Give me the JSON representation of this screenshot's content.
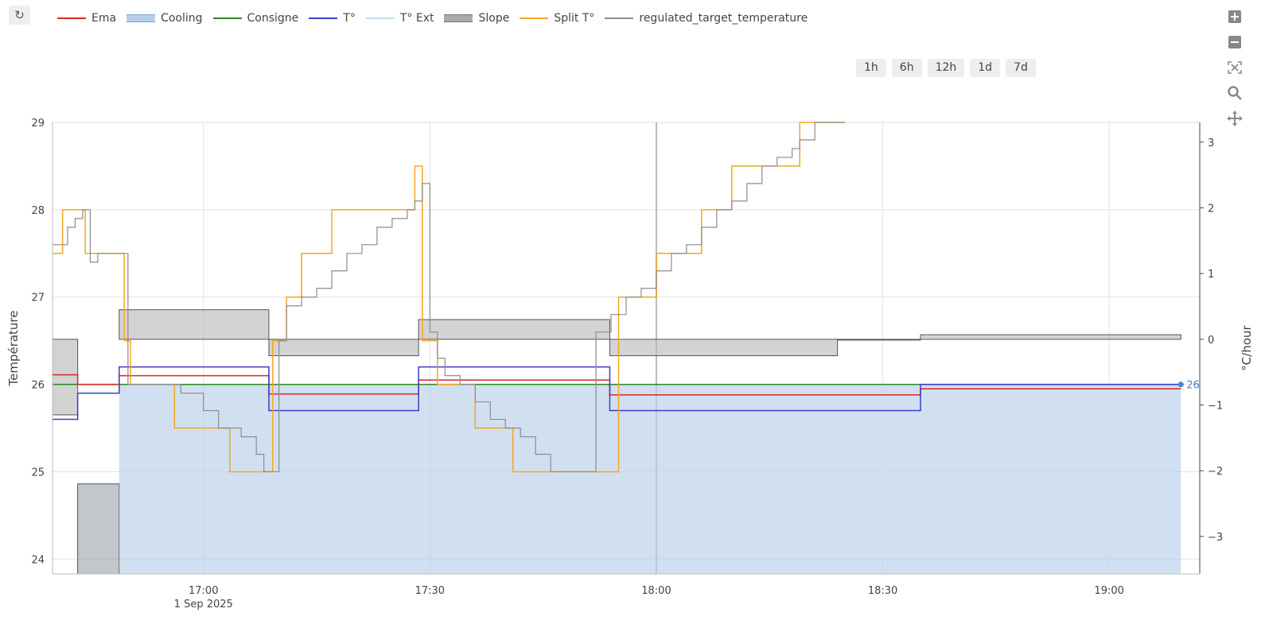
{
  "toolbar": {
    "refresh_icon": "↻"
  },
  "legend": [
    {
      "name": "Ema",
      "color": "#d62728",
      "style": "line"
    },
    {
      "name": "Cooling",
      "color": "#b9cfe8",
      "style": "band"
    },
    {
      "name": "Consigne",
      "color": "#2a8a1f",
      "style": "line"
    },
    {
      "name": "T°",
      "color": "#3b3bcc",
      "style": "line"
    },
    {
      "name": "T° Ext",
      "color": "#c6dbef",
      "style": "line"
    },
    {
      "name": "Slope",
      "color": "#aaaaaa",
      "style": "band"
    },
    {
      "name": "Split T°",
      "color": "#f5a623",
      "style": "line"
    },
    {
      "name": "regulated_target_temperature",
      "color": "#8c8c8c",
      "style": "line"
    }
  ],
  "range_buttons": [
    "1h",
    "6h",
    "12h",
    "1d",
    "7d"
  ],
  "modebar": [
    "zoom-in-icon",
    "zoom-out-icon",
    "autoscale-icon",
    "zoom-icon",
    "pan-icon"
  ],
  "chart_data": {
    "type": "line",
    "xlabel": "",
    "ylabel": "Température",
    "y2label": "°C/hour",
    "xlim": [
      "16:40",
      "19:12"
    ],
    "ylim": [
      23.83,
      29
    ],
    "y2lim": [
      -3.57,
      3.3
    ],
    "x_ticks": [
      "17:00",
      "17:30",
      "18:00",
      "18:30",
      "19:00"
    ],
    "x_date_label": "1 Sep 2025",
    "y_ticks": [
      24,
      25,
      26,
      27,
      28,
      29
    ],
    "y2_ticks": [
      -3,
      -2,
      -1,
      0,
      1,
      2,
      3
    ],
    "grid": true,
    "series": [
      {
        "name": "Cooling",
        "type": "area",
        "color": "#b9cfe8",
        "x": [
          "16:43:30",
          "16:48:50",
          "16:48:50",
          "19:09:30"
        ],
        "y": [
          23.83,
          23.83,
          26,
          26
        ]
      },
      {
        "name": "Consigne",
        "type": "step",
        "color": "#2a8a1f",
        "x": [
          "16:40",
          "19:09:30"
        ],
        "y": [
          26,
          26
        ]
      },
      {
        "name": "Ema",
        "type": "step",
        "color": "#d62728",
        "x": [
          "16:40",
          "16:43:20",
          "16:48:50",
          "17:08:40",
          "17:28:30",
          "17:53:50",
          "18:35",
          "19:09:30"
        ],
        "y": [
          26.11,
          26,
          26.1,
          25.89,
          26.05,
          25.88,
          25.95,
          25.95
        ]
      },
      {
        "name": "T°",
        "type": "step",
        "color": "#3b3bcc",
        "x": [
          "16:40",
          "16:43:20",
          "16:48:50",
          "17:08:40",
          "17:28:30",
          "17:53:50",
          "18:35",
          "19:09:30"
        ],
        "y": [
          25.6,
          25.9,
          26.2,
          25.7,
          26.2,
          25.7,
          26,
          26
        ],
        "end_label": "26"
      },
      {
        "name": "Split T°",
        "type": "step",
        "color": "#f5a623",
        "x": [
          "16:40",
          "16:41:20",
          "16:44:20",
          "16:49:30",
          "16:50:20",
          "16:56:10",
          "17:03:30",
          "17:09:10",
          "17:11",
          "17:13",
          "17:17",
          "17:21",
          "17:28",
          "17:29",
          "17:31",
          "17:36",
          "17:41",
          "17:48",
          "17:53",
          "17:55",
          "18:00",
          "18:06",
          "18:10",
          "18:15",
          "18:19",
          "18:21",
          "18:25"
        ],
        "y": [
          27.5,
          28,
          27.5,
          26.5,
          26,
          25.5,
          25,
          26.5,
          27,
          27.5,
          28,
          28,
          28.5,
          26.5,
          26,
          25.5,
          25,
          25,
          25,
          27,
          27.5,
          28,
          28.5,
          28.5,
          29,
          29,
          29
        ]
      },
      {
        "name": "regulated_target_temperature",
        "type": "step",
        "color": "#8c8c8c",
        "x": [
          "16:40",
          "16:42",
          "16:43",
          "16:44",
          "16:45",
          "16:46",
          "16:50",
          "16:53",
          "16:56",
          "16:57",
          "17:00",
          "17:02",
          "17:05",
          "17:07",
          "17:08",
          "17:10",
          "17:11",
          "17:13",
          "17:15",
          "17:17",
          "17:19",
          "17:21",
          "17:23",
          "17:25",
          "17:27",
          "17:28",
          "17:29",
          "17:30",
          "17:31",
          "17:32",
          "17:34",
          "17:36",
          "17:38",
          "17:40",
          "17:42",
          "17:44",
          "17:46",
          "17:48",
          "17:50",
          "17:52",
          "17:54",
          "17:56",
          "17:58",
          "18:00",
          "18:02",
          "18:04",
          "18:06",
          "18:08",
          "18:10",
          "18:12",
          "18:14",
          "18:16",
          "18:18",
          "18:19",
          "18:21",
          "18:24",
          "18:25"
        ],
        "y": [
          27.6,
          27.8,
          27.9,
          28,
          27.4,
          27.5,
          26,
          26,
          26,
          25.9,
          25.7,
          25.5,
          25.4,
          25.2,
          25,
          26.5,
          26.9,
          27,
          27.1,
          27.3,
          27.5,
          27.6,
          27.8,
          27.9,
          28,
          28.1,
          28.3,
          26.6,
          26.3,
          26.1,
          26,
          25.8,
          25.6,
          25.5,
          25.4,
          25.2,
          25,
          25,
          25,
          26.6,
          26.8,
          27,
          27.1,
          27.3,
          27.5,
          27.6,
          27.8,
          28,
          28.1,
          28.3,
          28.5,
          28.6,
          28.7,
          28.8,
          29,
          29,
          29
        ]
      }
    ],
    "slope": {
      "name": "Slope",
      "axis": "y2",
      "color": "#aaaaaa",
      "x": [
        "16:40",
        "16:43:20",
        "16:48:50",
        "17:08:40",
        "17:28:30",
        "17:53:50",
        "18:24",
        "18:35",
        "19:09:30"
      ],
      "y": [
        -1.15,
        -2.2,
        0.45,
        -0.25,
        0.3,
        -0.25,
        0,
        0.07,
        0.07
      ],
      "lower_first_segment": -3.57
    }
  }
}
